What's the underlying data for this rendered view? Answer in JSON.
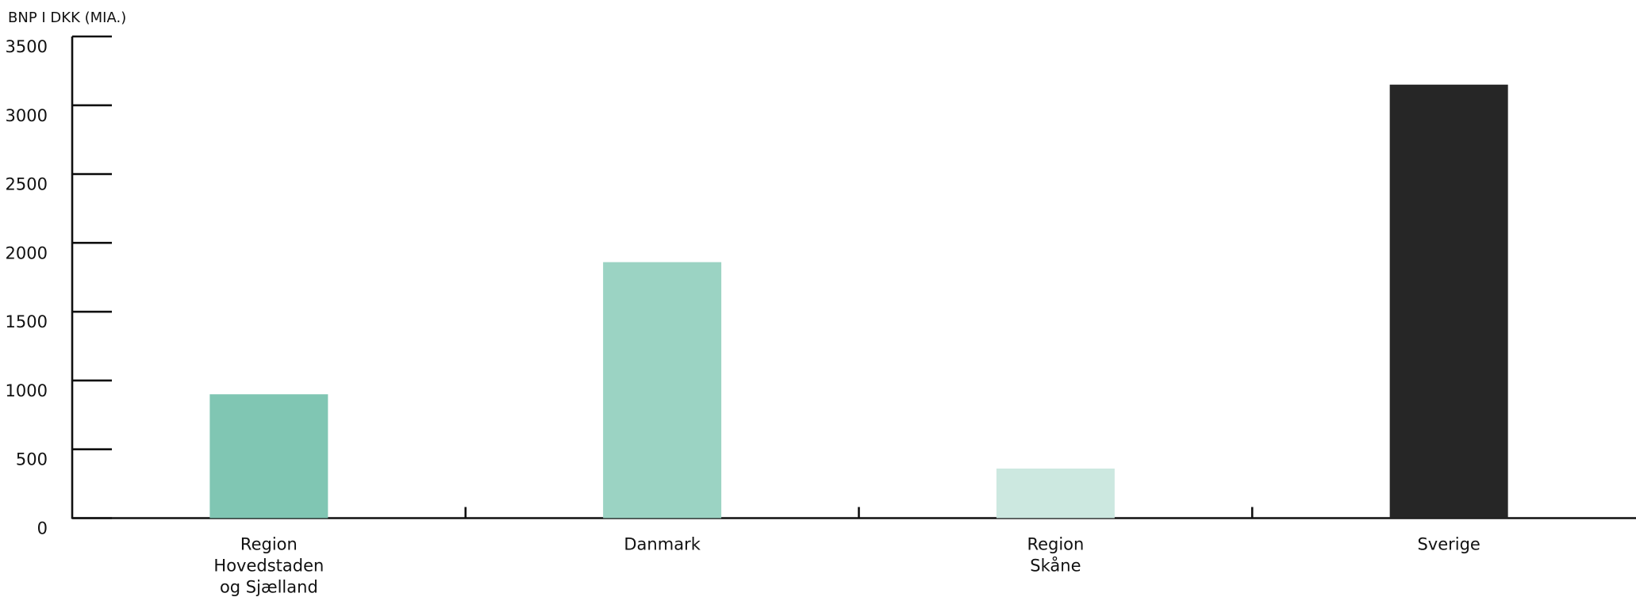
{
  "chart_data": {
    "type": "bar",
    "y_label": "BNP I DKK (MIA.)",
    "categories": [
      "Region\nHovedstaden\nog Sjælland",
      "Danmark",
      "Region\nSkåne",
      "Sverige"
    ],
    "values": [
      900,
      1860,
      360,
      3150
    ],
    "colors": [
      "#80c6b3",
      "#9bd3c3",
      "#cce8e0",
      "#262626"
    ],
    "ylim": [
      0,
      3500
    ],
    "yticks": [
      0,
      500,
      1000,
      1500,
      2000,
      2500,
      3000,
      3500
    ]
  }
}
